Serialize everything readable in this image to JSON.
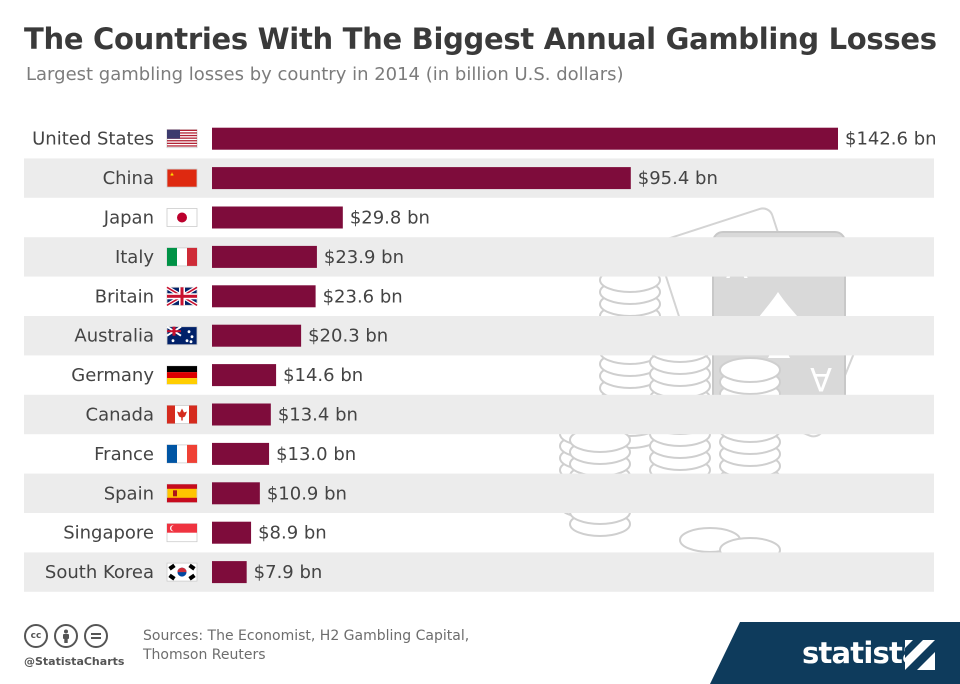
{
  "header": {
    "title": "The Countries With The Biggest Annual Gambling Losses",
    "subtitle": "Largest gambling losses by country in 2014 (in billion U.S. dollars)"
  },
  "chart_data": {
    "type": "bar",
    "orientation": "horizontal",
    "title": "The Countries With The Biggest Annual Gambling Losses",
    "subtitle": "Largest gambling losses by country in 2014 (in billion U.S. dollars)",
    "categories": [
      "United States",
      "China",
      "Japan",
      "Italy",
      "Britain",
      "Australia",
      "Germany",
      "Canada",
      "France",
      "Spain",
      "Singapore",
      "South Korea"
    ],
    "values": [
      142.6,
      95.4,
      29.8,
      23.9,
      23.6,
      20.3,
      14.6,
      13.4,
      13.0,
      10.9,
      8.9,
      7.9
    ],
    "data_labels": [
      "$142.6 bn",
      "$95.4 bn",
      "$29.8 bn",
      "$23.9 bn",
      "$23.6 bn",
      "$20.3 bn",
      "$14.6 bn",
      "$13.4 bn",
      "$13.0 bn",
      "$10.9 bn",
      "$8.9 bn",
      "$7.9 bn"
    ],
    "flag_icons": [
      "us-flag-icon",
      "china-flag-icon",
      "japan-flag-icon",
      "italy-flag-icon",
      "uk-flag-icon",
      "australia-flag-icon",
      "germany-flag-icon",
      "canada-flag-icon",
      "france-flag-icon",
      "spain-flag-icon",
      "singapore-flag-icon",
      "south-korea-flag-icon"
    ],
    "xlim": [
      0,
      142.6
    ],
    "grid": false,
    "legend": "none",
    "bar_color": "#7e0c3b",
    "row_stripe_color": "#ececec"
  },
  "illustration": {
    "icon": "casino-chips-and-ace-of-spades-icon",
    "card_letter": "A",
    "color": "#d9d9d9"
  },
  "footer": {
    "license_icons": [
      "cc-icon",
      "attribution-icon",
      "no-derivatives-icon"
    ],
    "cc_label": "cc",
    "handle": "@StatistaCharts",
    "sources_line1": "Sources: The Economist, H2 Gambling Capital,",
    "sources_line2": "Thomson Reuters",
    "brand": "statista",
    "brand_color": "#0e3b5c"
  }
}
